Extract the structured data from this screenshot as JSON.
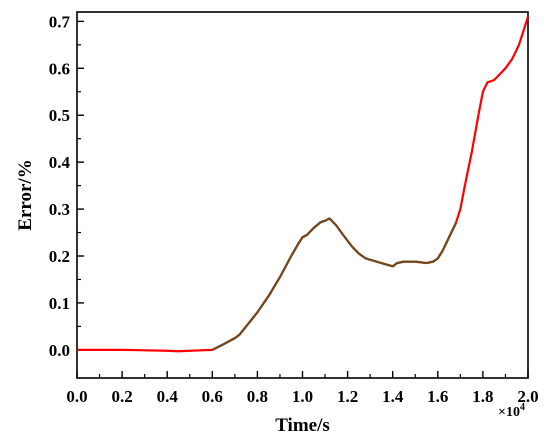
{
  "chart_data": {
    "type": "line",
    "title": "",
    "xlabel": "Time/s",
    "ylabel": "Error/%",
    "x_multiplier": {
      "base": "×10",
      "exp": "4"
    },
    "xlim": [
      0.0,
      2.0
    ],
    "ylim": [
      -0.06,
      0.72
    ],
    "x_ticks": [
      "0.0",
      "0.2",
      "0.4",
      "0.6",
      "0.8",
      "1.0",
      "1.2",
      "1.4",
      "1.6",
      "1.8",
      "2.0"
    ],
    "y_ticks": [
      "0.0",
      "0.1",
      "0.2",
      "0.3",
      "0.4",
      "0.5",
      "0.6",
      "0.7"
    ],
    "grid": false,
    "colors": {
      "highlight": "#ff0000",
      "main": "#6b4a1e"
    },
    "series": [
      {
        "x": [
          0.0,
          0.1,
          0.2,
          0.3,
          0.4,
          0.45,
          0.5,
          0.55,
          0.6,
          0.65,
          0.7,
          0.72,
          0.75,
          0.8,
          0.85,
          0.9,
          0.95,
          0.98,
          1.0,
          1.02,
          1.05,
          1.08,
          1.1,
          1.12,
          1.15,
          1.18,
          1.22,
          1.25,
          1.28,
          1.3,
          1.35,
          1.4,
          1.42,
          1.45,
          1.5,
          1.55,
          1.58,
          1.6,
          1.62,
          1.65,
          1.68,
          1.7,
          1.72,
          1.75,
          1.78,
          1.8,
          1.82,
          1.85,
          1.88,
          1.9,
          1.93,
          1.96,
          1.98,
          2.0
        ],
        "y": [
          0.0,
          0.0,
          0.0,
          -0.001,
          -0.002,
          -0.003,
          -0.002,
          -0.001,
          0.0,
          0.012,
          0.025,
          0.032,
          0.05,
          0.08,
          0.115,
          0.155,
          0.2,
          0.225,
          0.24,
          0.245,
          0.26,
          0.272,
          0.275,
          0.28,
          0.265,
          0.245,
          0.22,
          0.205,
          0.195,
          0.192,
          0.185,
          0.178,
          0.185,
          0.188,
          0.188,
          0.185,
          0.188,
          0.195,
          0.21,
          0.24,
          0.27,
          0.3,
          0.35,
          0.42,
          0.5,
          0.55,
          0.57,
          0.575,
          0.59,
          0.6,
          0.62,
          0.65,
          0.68,
          0.71
        ]
      }
    ]
  }
}
